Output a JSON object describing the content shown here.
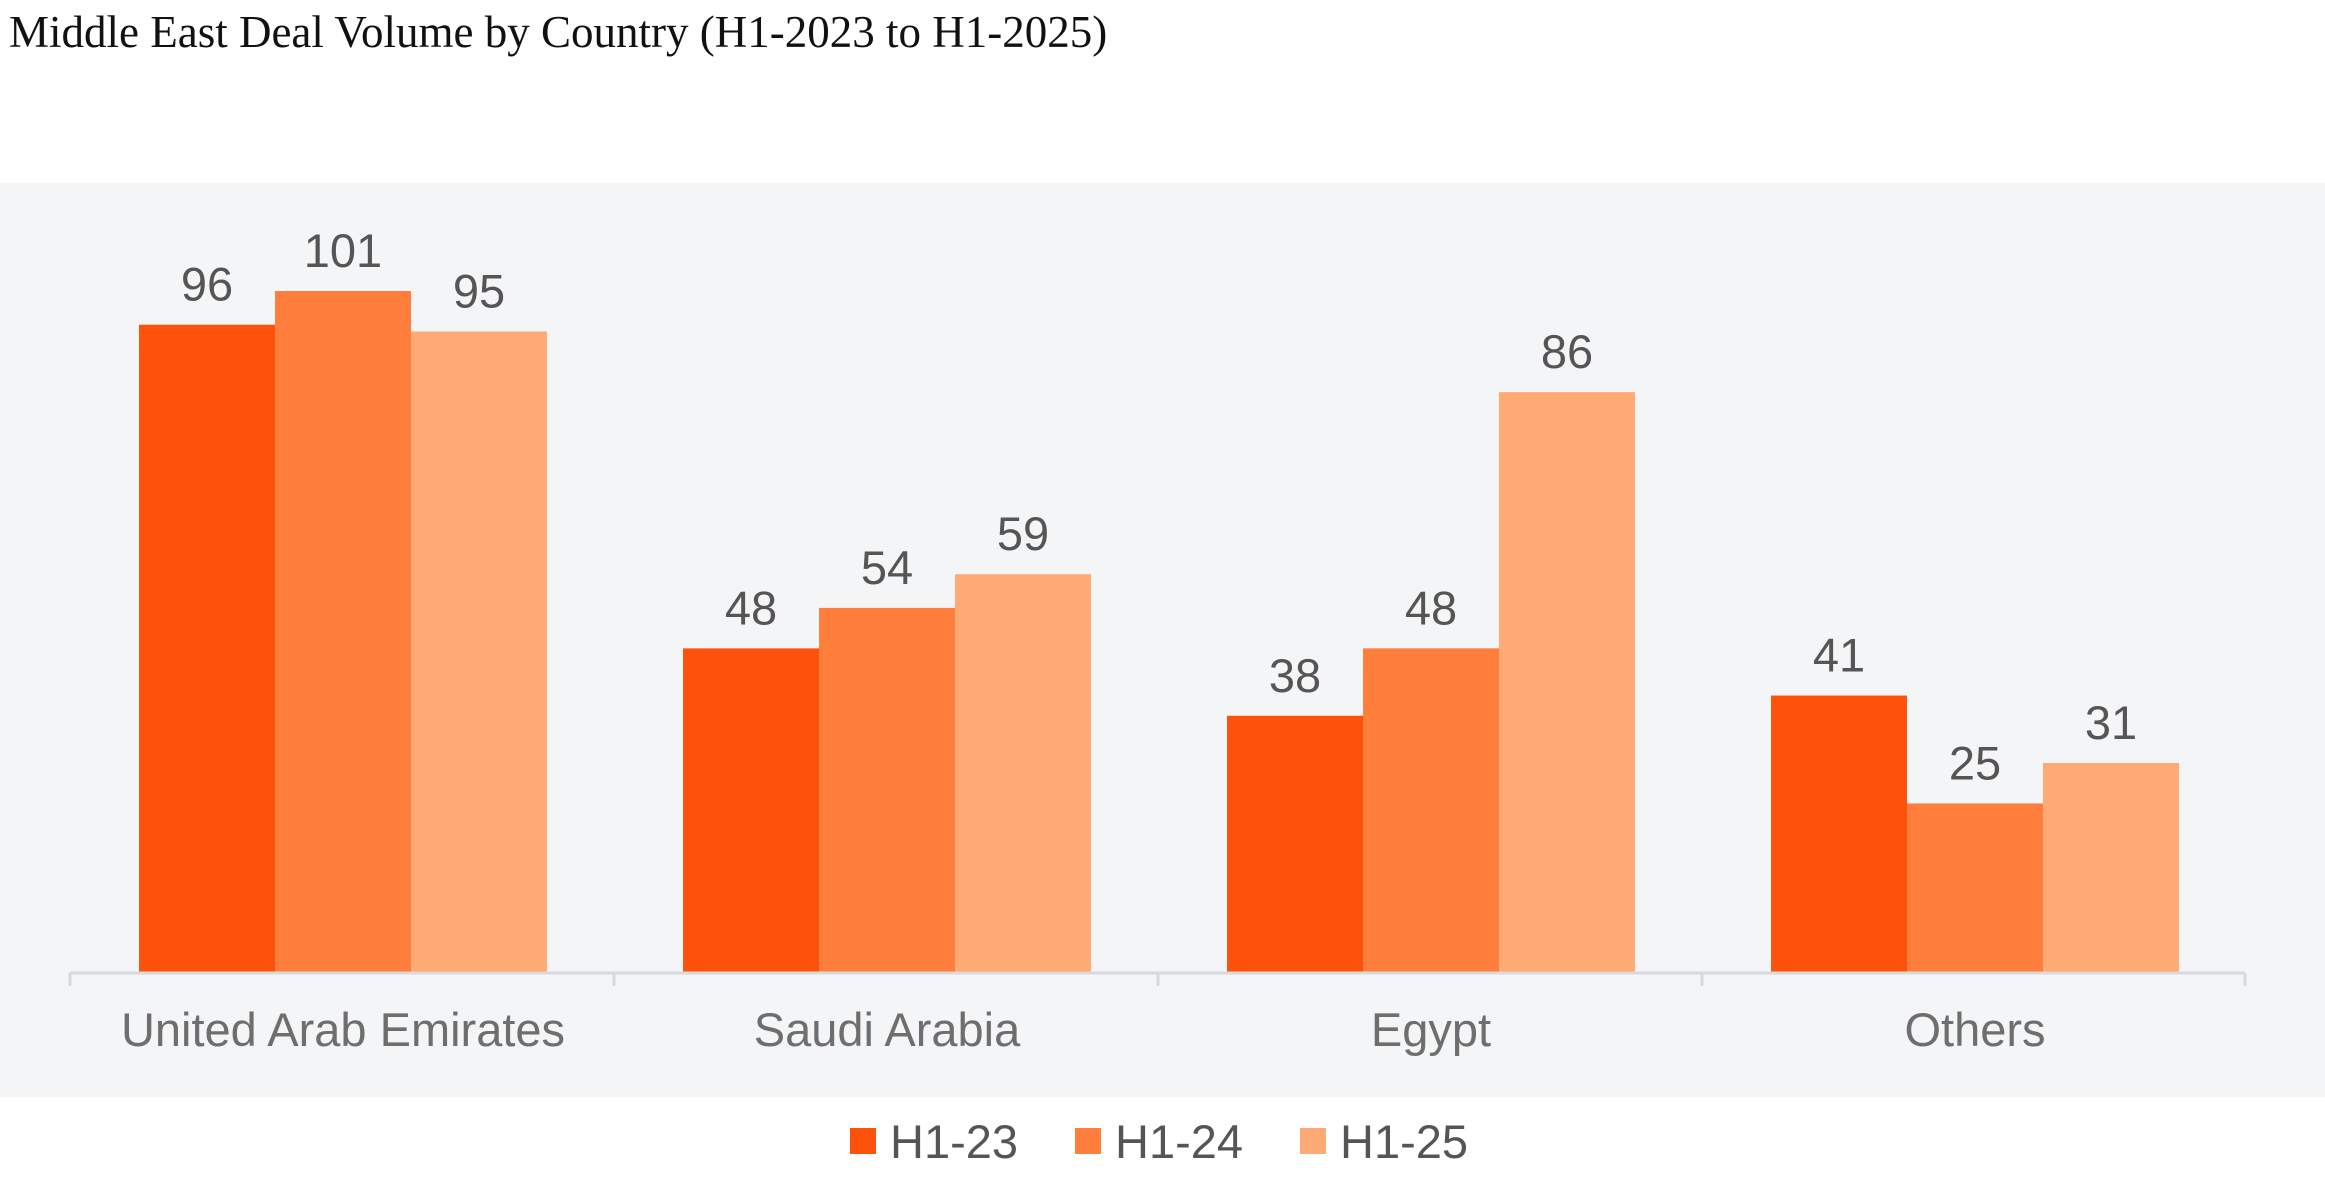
{
  "chart_data": {
    "type": "bar",
    "title": "Middle East Deal Volume by Country (H1-2023 to H1-2025)",
    "xlabel": "",
    "ylabel": "",
    "ylim": [
      0,
      101
    ],
    "grid": false,
    "legend_position": "bottom",
    "categories": [
      "United Arab Emirates",
      "Saudi Arabia",
      "Egypt",
      "Others"
    ],
    "series": [
      {
        "name": "H1-23",
        "values": [
          96,
          48,
          38,
          41
        ],
        "color": "#fe520b"
      },
      {
        "name": "H1-24",
        "values": [
          101,
          54,
          48,
          25
        ],
        "color": "#ff7e3b"
      },
      {
        "name": "H1-25",
        "values": [
          95,
          59,
          86,
          31
        ],
        "color": "#ffaa75"
      }
    ],
    "colors": {
      "plot_background": "#f4f5f7",
      "axis_line": "#d9d9d9",
      "value_label": "#555555",
      "category_label": "#6e6e6e"
    }
  }
}
